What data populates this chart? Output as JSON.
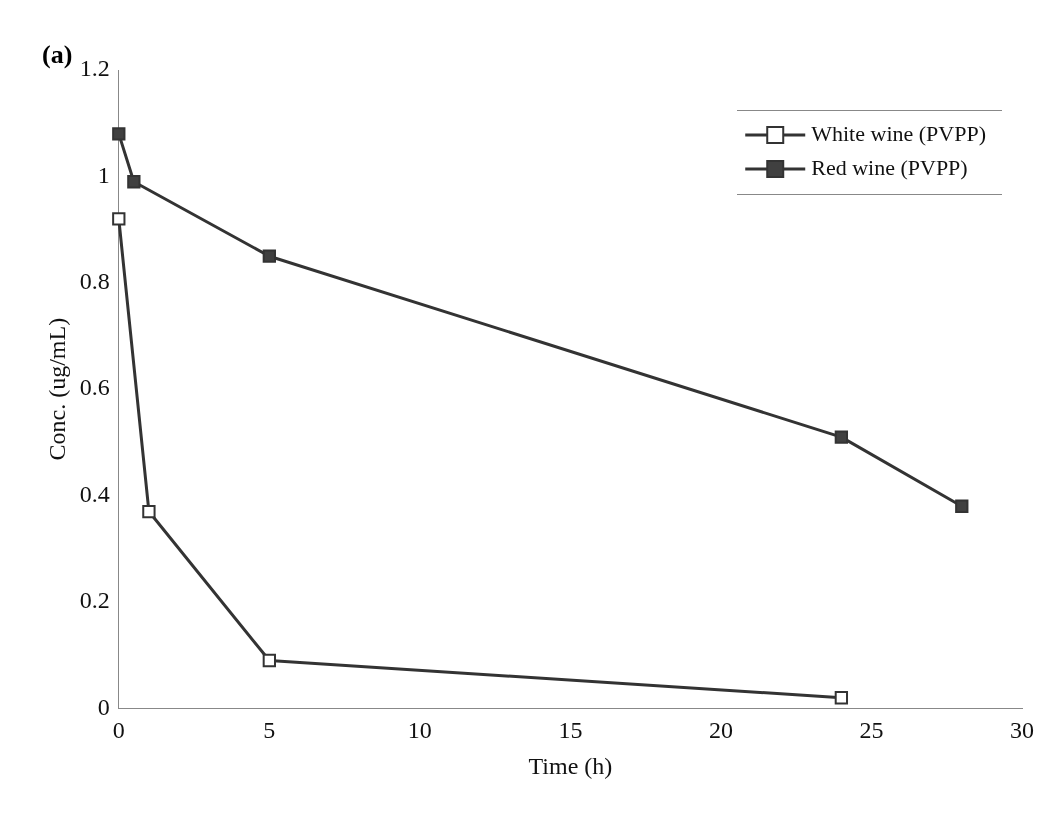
{
  "chart_data": {
    "type": "line",
    "xlabel": "Time (h)",
    "ylabel": "Conc. (ug/mL)",
    "annotations": [
      "(a)"
    ],
    "xlim": [
      0,
      30
    ],
    "xticks": [
      0,
      5,
      10,
      15,
      20,
      25,
      30
    ],
    "ylim": [
      0,
      1.2
    ],
    "yticks": [
      0,
      0.2,
      0.4,
      0.6,
      0.8,
      1,
      1.2
    ],
    "grid": false,
    "legend": "top right",
    "marker": "square",
    "line_style": "solid",
    "series": [
      {
        "name": "White wine (PVPP)",
        "color": "#ffffff",
        "x": [
          0,
          1,
          5,
          24
        ],
        "values": [
          0.92,
          0.37,
          0.09,
          0.02
        ]
      },
      {
        "name": "Red wine (PVPP)",
        "color": "#404040",
        "x": [
          0,
          0.5,
          5,
          24,
          28
        ],
        "values": [
          1.08,
          0.99,
          0.85,
          0.51,
          0.38
        ]
      }
    ]
  }
}
